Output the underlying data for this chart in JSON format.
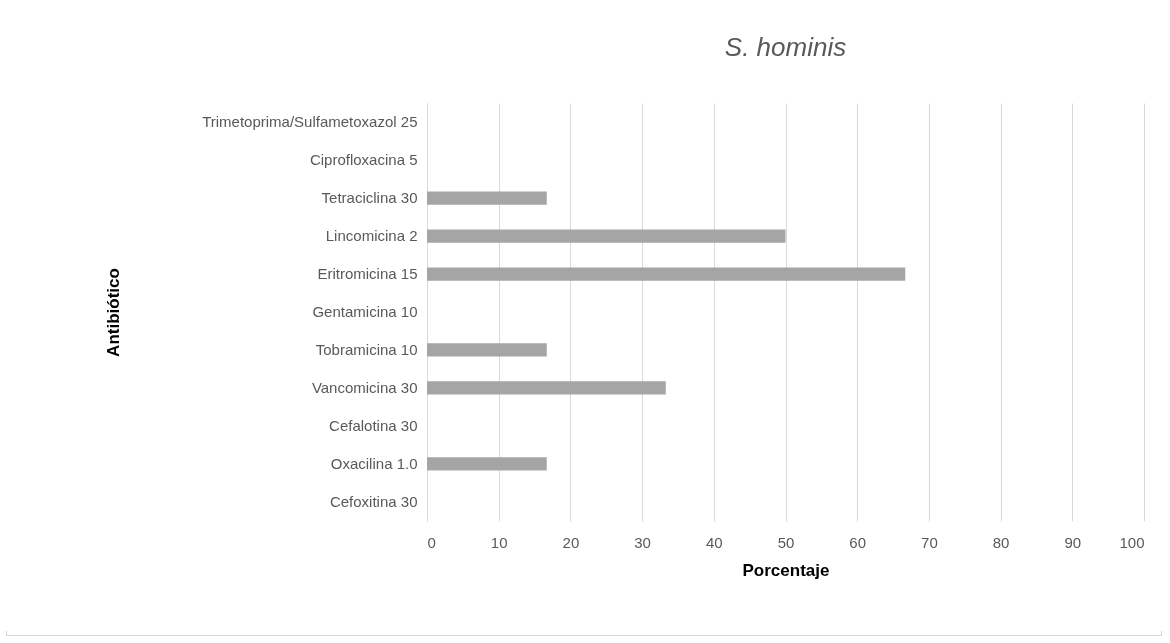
{
  "chart_data": {
    "type": "bar",
    "orientation": "horizontal",
    "title": "S. hominis",
    "xlabel": "Porcentaje",
    "ylabel": "Antibiótico",
    "categories": [
      "Trimetoprima/Sulfametoxazol 25",
      "Ciprofloxacina 5",
      "Tetraciclina 30",
      "Lincomicina 2",
      "Eritromicina 15",
      "Gentamicina 10",
      "Tobramicina 10",
      "Vancomicina 30",
      "Cefalotina 30",
      "Oxacilina 1.0",
      "Cefoxitina 30"
    ],
    "values": [
      0,
      0,
      16.7,
      50,
      66.7,
      0,
      16.7,
      33.3,
      0,
      16.7,
      0
    ],
    "color": "#a5a5a5",
    "xlim": [
      0,
      100
    ],
    "xticks": [
      0,
      10,
      20,
      30,
      40,
      50,
      60,
      70,
      80,
      90,
      100
    ],
    "grid": "x"
  }
}
